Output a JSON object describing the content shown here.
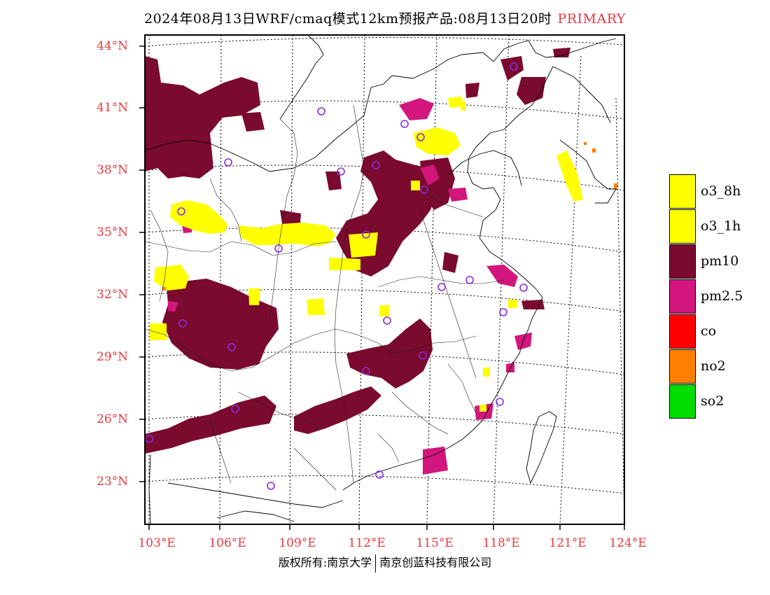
{
  "header": {
    "title": "2024年08月13日WRF/cmaq模式12km预报产品:08月13日20时",
    "tag": "PRIMARY"
  },
  "map": {
    "lat_labels": [
      "44°N",
      "41°N",
      "38°N",
      "35°N",
      "32°N",
      "29°N",
      "26°N",
      "23°N"
    ],
    "lon_labels": [
      "103°E",
      "106°E",
      "109°E",
      "112°E",
      "115°E",
      "118°E",
      "121°E",
      "124°E"
    ],
    "colors": {
      "pm10": "#7a0a2e",
      "pm2_5": "#d2167d",
      "o3": "#ffff00",
      "no2": "#ff8000",
      "station": "#8a2be2"
    }
  },
  "legend": {
    "items": [
      {
        "label": "o3_8h",
        "color": "#ffff00"
      },
      {
        "label": "o3_1h",
        "color": "#ffff00"
      },
      {
        "label": "pm10",
        "color": "#7a0a2e"
      },
      {
        "label": "pm2.5",
        "color": "#d2167d"
      },
      {
        "label": "co",
        "color": "#ff0000"
      },
      {
        "label": "no2",
        "color": "#ff8000"
      },
      {
        "label": "so2",
        "color": "#00dd00"
      }
    ]
  },
  "footer": {
    "left": "版权所有:南京大学",
    "right": "南京创蓝科技有限公司"
  }
}
